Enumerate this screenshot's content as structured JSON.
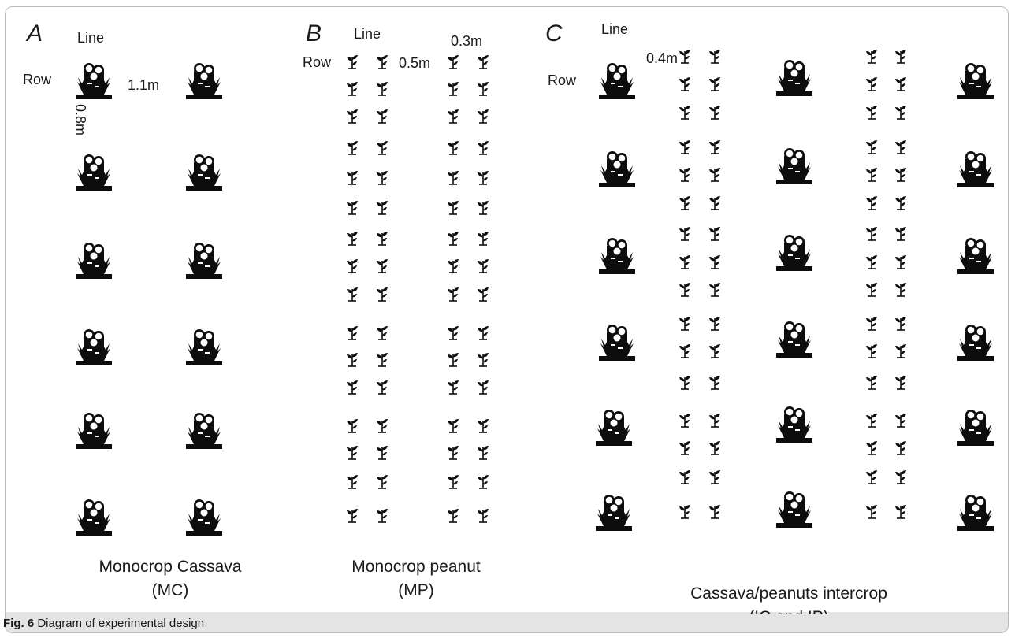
{
  "caption": {
    "label": "Fig. 6",
    "text": "Diagram of experimental design"
  },
  "panels": [
    {
      "letter": "A",
      "line_label": "Line",
      "row_label": "Row",
      "spacings": [
        "1.1m",
        "0.8m"
      ],
      "title_line1": "Monocrop Cassava",
      "title_line2": "(MC)"
    },
    {
      "letter": "B",
      "line_label": "Line",
      "row_label": "Row",
      "spacings": [
        "0.5m",
        "0.3m"
      ],
      "title_line1": "Monocrop peanut",
      "title_line2": "(MP)"
    },
    {
      "letter": "C",
      "line_label": "Line",
      "row_label": "Row",
      "spacings": [
        "0.4m"
      ],
      "title_line1": "Cassava/peanuts intercrop",
      "title_line2": "(IC and IP)"
    }
  ],
  "icons": {
    "cassava": "cassava-plant-icon",
    "peanut": "peanut-seedling-icon"
  },
  "colors": {
    "icon": "#0d0d0d",
    "text": "#1a1a1a",
    "caption_bar": "#e4e4e4",
    "border": "#b9b9b9"
  }
}
